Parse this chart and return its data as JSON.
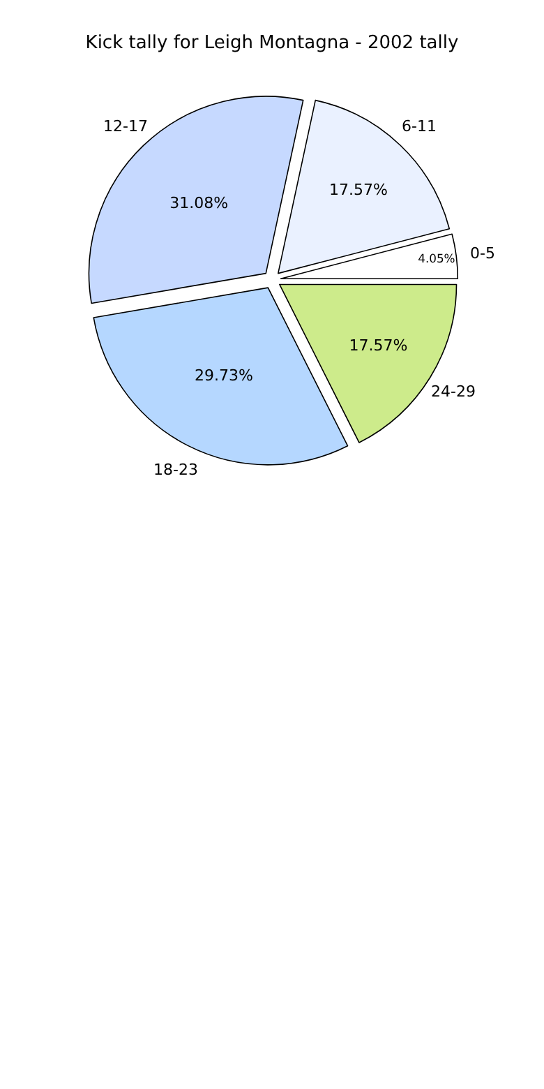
{
  "chart_data": {
    "type": "pie",
    "title": "Kick tally for Leigh Montagna - 2002 tally",
    "categories": [
      "0-5",
      "6-11",
      "12-17",
      "18-23",
      "24-29"
    ],
    "values": [
      4.05,
      17.57,
      31.08,
      29.73,
      17.57
    ],
    "value_labels": [
      "4.05%",
      "17.57%",
      "31.08%",
      "29.73%",
      "17.57%"
    ],
    "colors": [
      "#ffffff",
      "#eaf1ff",
      "#c6d9ff",
      "#b5d7ff",
      "#cdeb8b"
    ]
  }
}
